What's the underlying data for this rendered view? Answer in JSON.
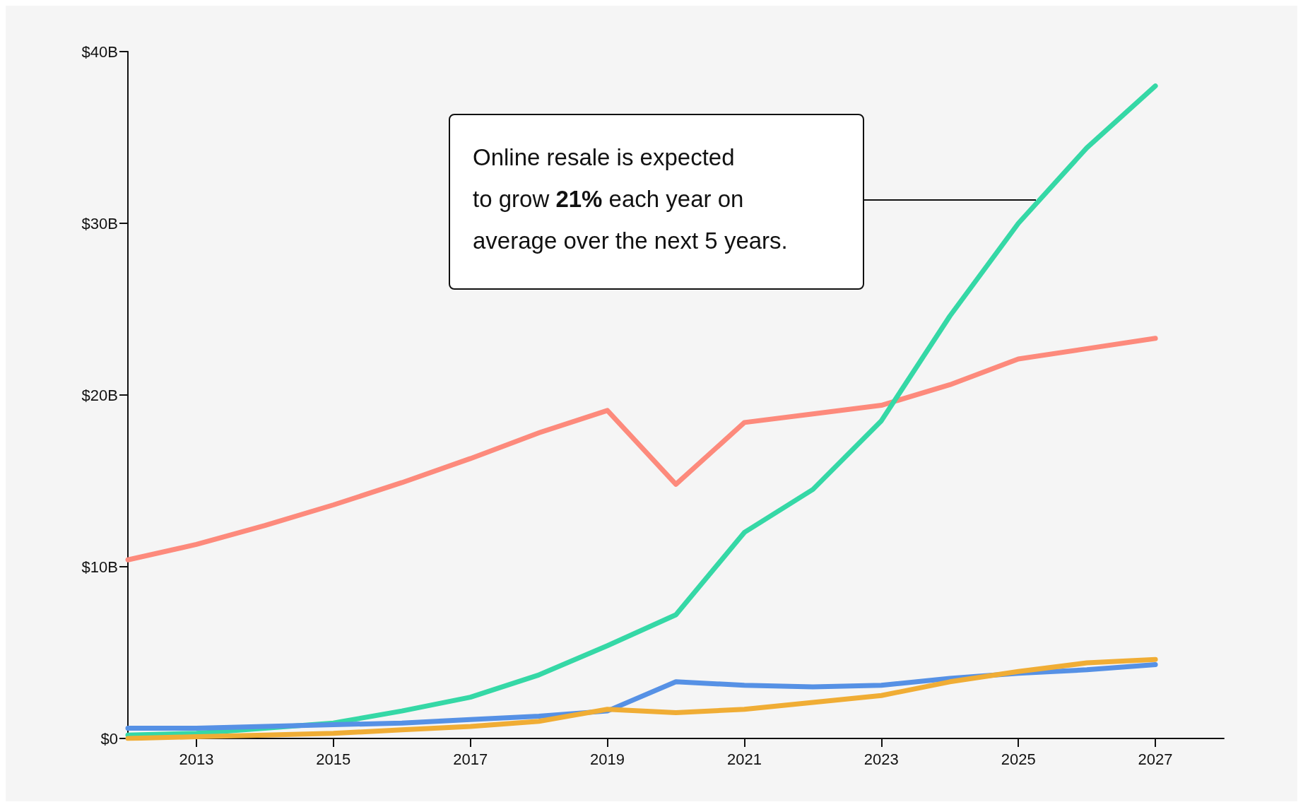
{
  "chart_data": {
    "type": "line",
    "x": [
      2012,
      2013,
      2014,
      2015,
      2016,
      2017,
      2018,
      2019,
      2020,
      2021,
      2022,
      2023,
      2024,
      2025,
      2026,
      2027
    ],
    "series": [
      {
        "color": "#fd8a7c",
        "values": [
          10.4,
          11.3,
          12.4,
          13.6,
          14.9,
          16.3,
          17.8,
          19.1,
          14.8,
          18.4,
          18.9,
          19.4,
          20.6,
          22.1,
          22.7,
          23.3
        ]
      },
      {
        "color": "#35d8a6",
        "values": [
          0.2,
          0.3,
          0.6,
          0.9,
          1.6,
          2.4,
          3.7,
          5.4,
          7.2,
          12.0,
          14.5,
          18.5,
          24.6,
          30.0,
          34.4,
          38.0
        ]
      },
      {
        "color": "#5691e5",
        "values": [
          0.6,
          0.6,
          0.7,
          0.8,
          0.9,
          1.1,
          1.3,
          1.6,
          3.3,
          3.1,
          3.0,
          3.1,
          3.5,
          3.8,
          4.0,
          4.3
        ]
      },
      {
        "color": "#f0ad35",
        "values": [
          0.0,
          0.1,
          0.2,
          0.3,
          0.5,
          0.7,
          1.0,
          1.7,
          1.5,
          1.7,
          2.1,
          2.5,
          3.3,
          3.9,
          4.4,
          4.6
        ]
      }
    ],
    "xlim": [
      2012,
      2028
    ],
    "xticks": [
      2013,
      2015,
      2017,
      2019,
      2021,
      2023,
      2025,
      2027
    ],
    "ylim": [
      0,
      40
    ],
    "yticks": [
      {
        "value": 0,
        "label": "$0"
      },
      {
        "value": 10,
        "label": "$10B"
      },
      {
        "value": 20,
        "label": "$20B"
      },
      {
        "value": 30,
        "label": "$30B"
      },
      {
        "value": 40,
        "label": "$40B"
      }
    ],
    "grid": false,
    "marker": "none",
    "line_style": "solid",
    "annotations": [
      "Online resale is expected\nto grow 21% each year on\naverage over the next 5 years."
    ]
  }
}
